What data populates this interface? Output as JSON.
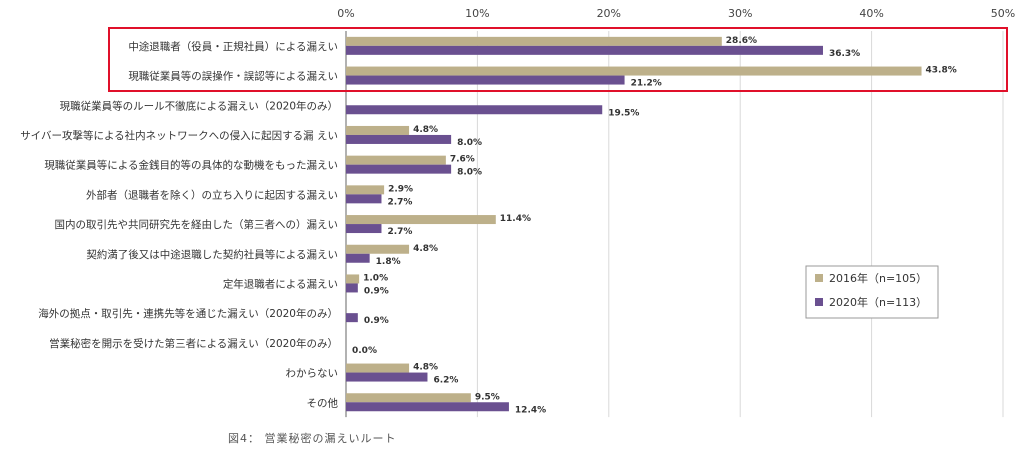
{
  "chart_data": {
    "type": "bar",
    "orientation": "horizontal",
    "title": "",
    "caption": "図4： 営業秘密の漏えいルート",
    "xlim": [
      0,
      50
    ],
    "xticks": [
      "0%",
      "10%",
      "20%",
      "30%",
      "40%",
      "50%"
    ],
    "xtick_values": [
      0,
      10,
      20,
      30,
      40,
      50
    ],
    "grid": true,
    "legend_position": "right",
    "categories": [
      "中途退職者（役員・正規社員）による漏えい",
      "現職従業員等の誤操作・誤認等による漏えい",
      "現職従業員等のルール不徹底による漏えい（2020年のみ）",
      "サイバー攻撃等による社内ネットワークへの侵入に起因する漏 えい",
      "現職従業員等による金銭目的等の具体的な動機をもった漏えい",
      "外部者（退職者を除く）の立ち入りに起因する漏えい",
      "国内の取引先や共同研究先を経由した（第三者への）漏えい",
      "契約満了後又は中途退職した契約社員等による漏えい",
      "定年退職者による漏えい",
      "海外の拠点・取引先・連携先等を通じた漏えい（2020年のみ）",
      "営業秘密を開示を受けた第三者による漏えい（2020年のみ）",
      "わからない",
      "その他"
    ],
    "highlighted_categories": [
      0,
      1
    ],
    "series": [
      {
        "name": "2016年（n=105）",
        "color": "#bdb08a",
        "values": [
          28.6,
          43.8,
          null,
          4.8,
          7.6,
          2.9,
          11.4,
          4.8,
          1.0,
          null,
          null,
          4.8,
          9.5
        ],
        "labels": [
          "28.6%",
          "43.8%",
          null,
          "4.8%",
          "7.6%",
          "2.9%",
          "11.4%",
          "4.8%",
          "1.0%",
          null,
          null,
          "4.8%",
          "9.5%"
        ]
      },
      {
        "name": "2020年（n=113）",
        "color": "#6a5090",
        "values": [
          36.3,
          21.2,
          19.5,
          8.0,
          8.0,
          2.7,
          2.7,
          1.8,
          0.9,
          0.9,
          0.0,
          6.2,
          12.4
        ],
        "labels": [
          "36.3%",
          "21.2%",
          "19.5%",
          "8.0%",
          "8.0%",
          "2.7%",
          "2.7%",
          "1.8%",
          "0.9%",
          "0.9%",
          "0.0%",
          "6.2%",
          "12.4%"
        ]
      }
    ],
    "highlight_color": "#e0102a"
  }
}
